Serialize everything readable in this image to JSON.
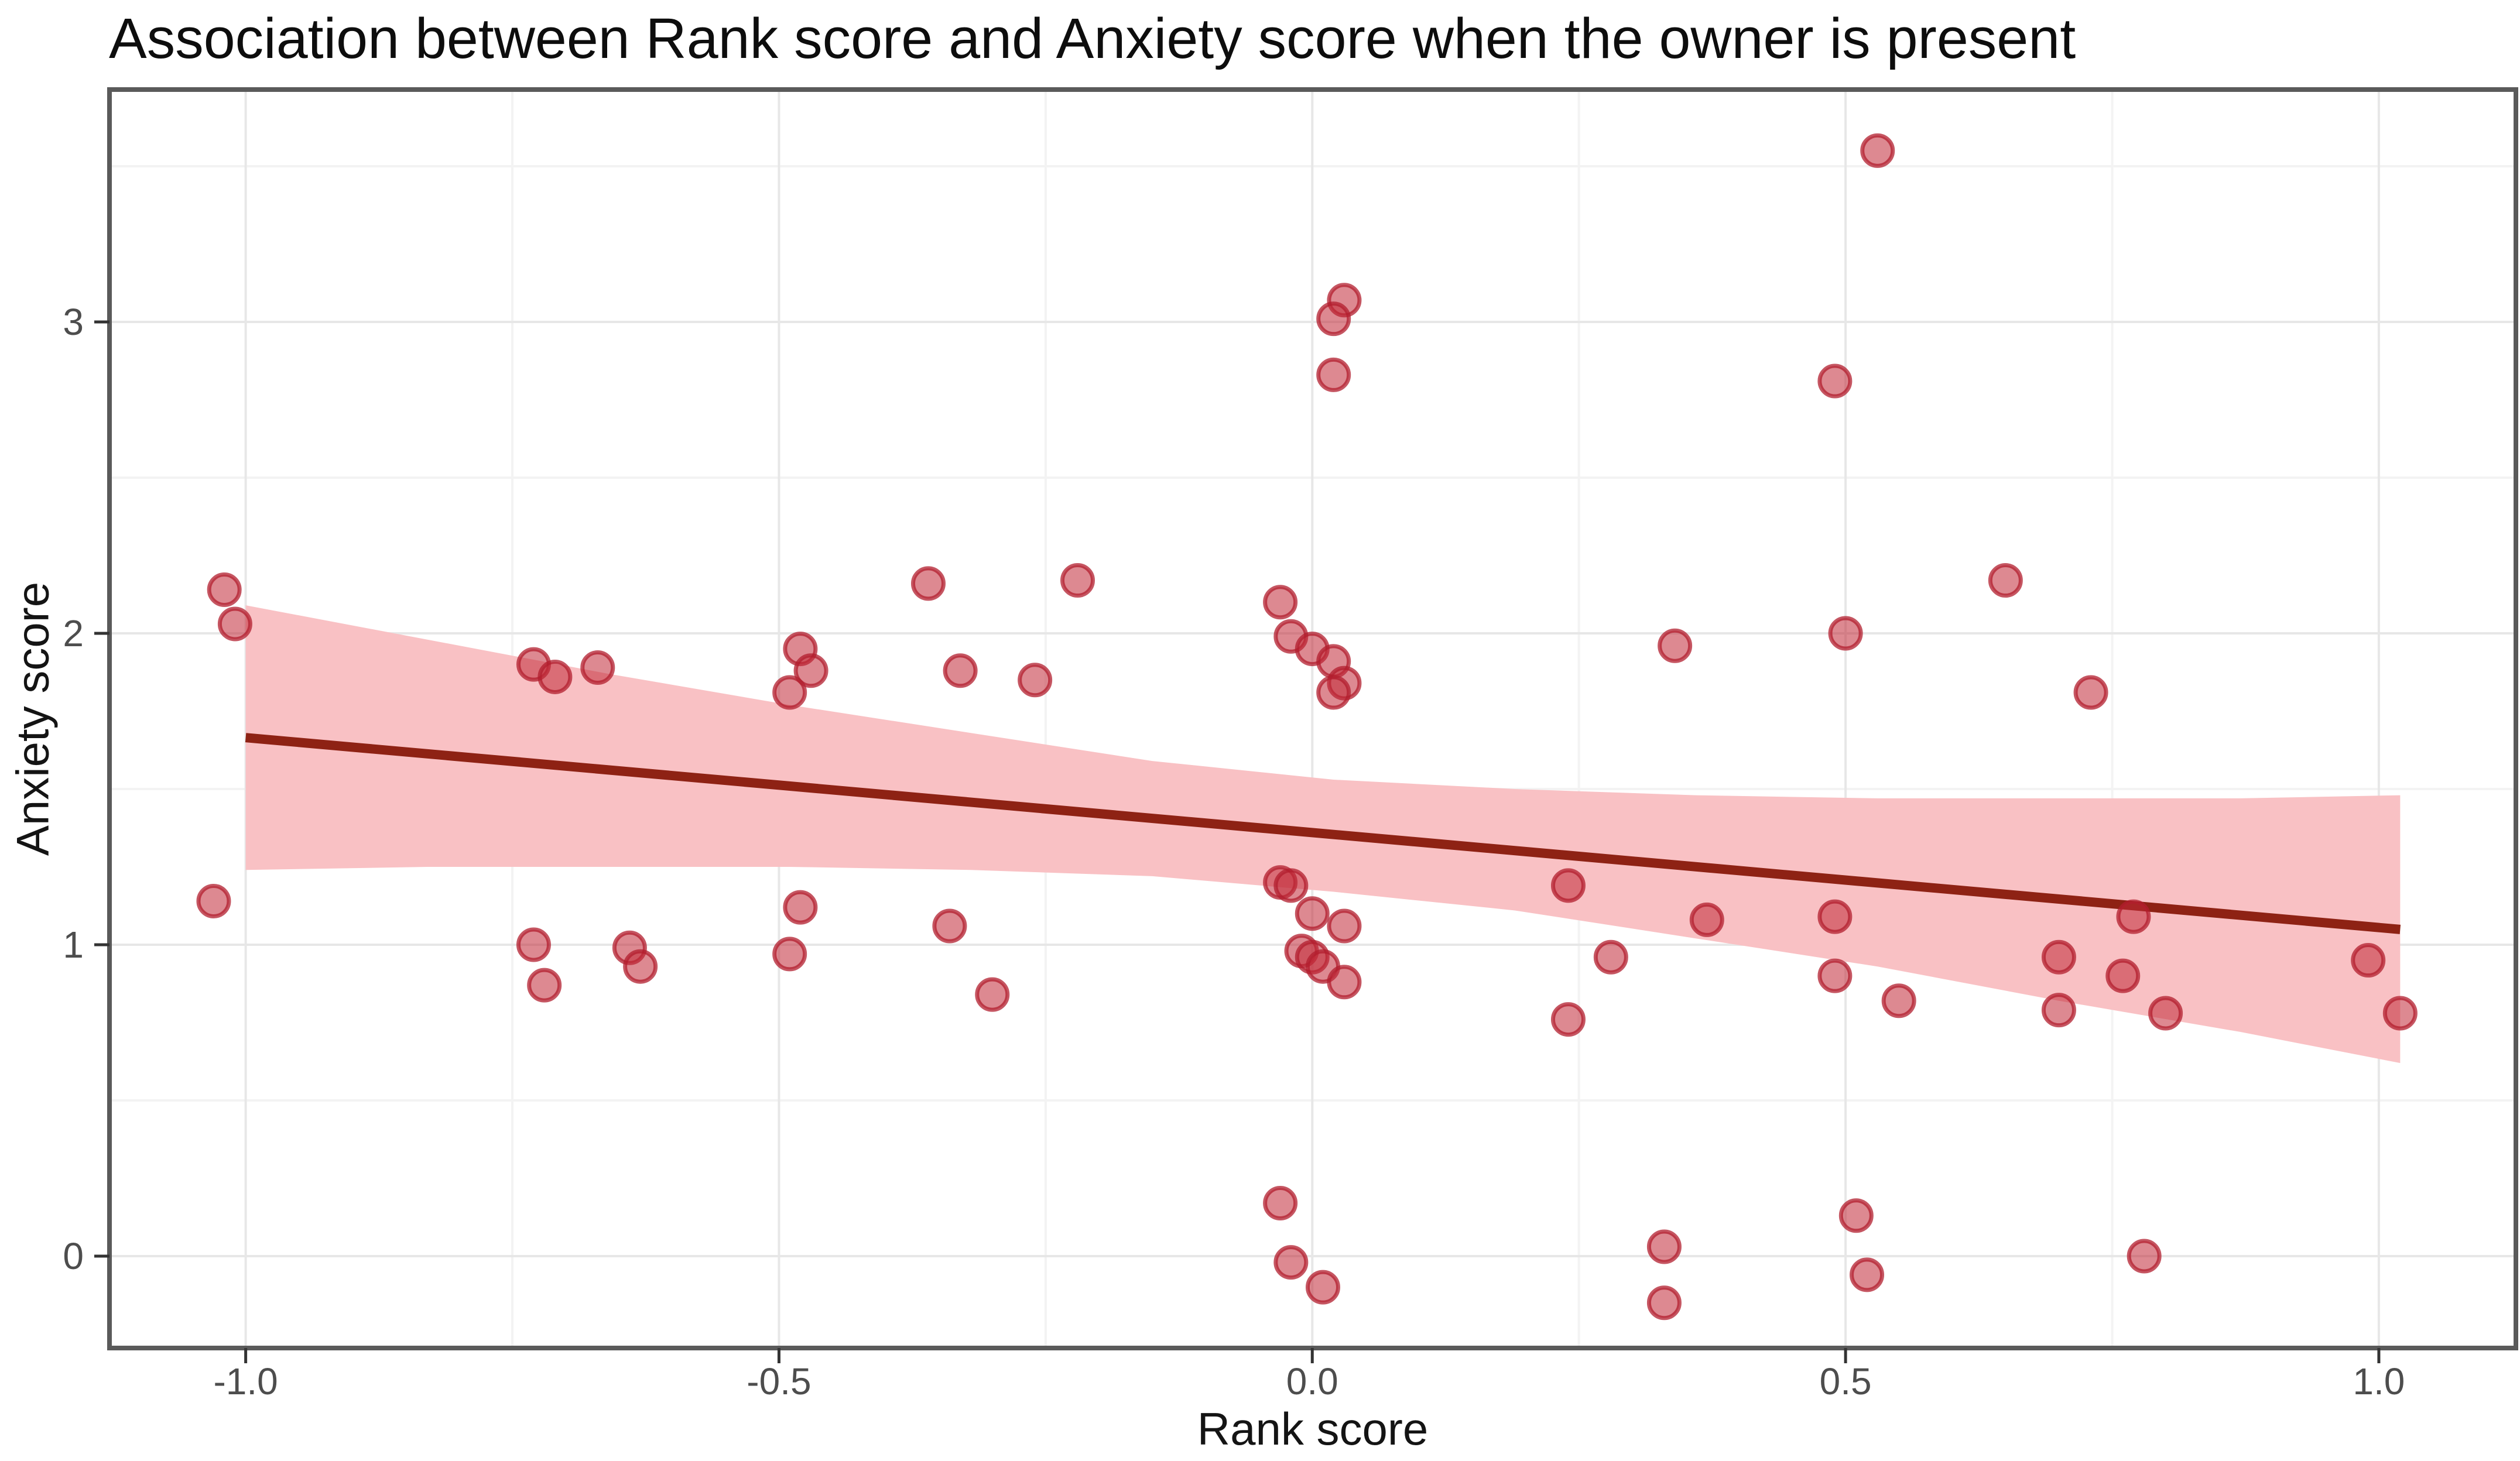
{
  "chart_data": {
    "type": "scatter",
    "title": "Association between Rank score and Anxiety score when the owner is present",
    "xlabel": "Rank score",
    "ylabel": "Anxiety score",
    "x_ticks": [
      -1.0,
      -0.5,
      0.0,
      0.5,
      1.0
    ],
    "x_tick_labels": [
      "-1.0",
      "-0.5",
      "0.0",
      "0.5",
      "1.0"
    ],
    "y_ticks": [
      0,
      1,
      2,
      3
    ],
    "y_tick_labels": [
      "0",
      "1",
      "2",
      "3"
    ],
    "x_minor_ticks": [
      -0.75,
      -0.25,
      0.25,
      0.75
    ],
    "y_minor_ticks": [
      0.5,
      1.5,
      2.5,
      3.5
    ],
    "xlim": [
      -1.1277,
      1.1285
    ],
    "ylim": [
      -0.2952,
      3.7462
    ],
    "grid": true,
    "legend": "none",
    "points": [
      [
        -1.02,
        2.14
      ],
      [
        -1.01,
        2.03
      ],
      [
        -1.03,
        1.14
      ],
      [
        -0.73,
        1.9
      ],
      [
        -0.71,
        1.86
      ],
      [
        -0.67,
        1.89
      ],
      [
        -0.73,
        1.0
      ],
      [
        -0.72,
        0.87
      ],
      [
        -0.64,
        0.99
      ],
      [
        -0.63,
        0.93
      ],
      [
        -0.48,
        1.95
      ],
      [
        -0.47,
        1.88
      ],
      [
        -0.49,
        1.81
      ],
      [
        -0.48,
        1.12
      ],
      [
        -0.49,
        0.97
      ],
      [
        -0.36,
        2.16
      ],
      [
        -0.33,
        1.88
      ],
      [
        -0.34,
        1.06
      ],
      [
        -0.3,
        0.84
      ],
      [
        -0.26,
        1.85
      ],
      [
        -0.22,
        2.17
      ],
      [
        0.03,
        3.07
      ],
      [
        0.02,
        3.01
      ],
      [
        0.02,
        2.83
      ],
      [
        -0.03,
        2.1
      ],
      [
        -0.02,
        1.99
      ],
      [
        0.0,
        1.95
      ],
      [
        0.02,
        1.91
      ],
      [
        0.03,
        1.84
      ],
      [
        0.02,
        1.81
      ],
      [
        -0.03,
        1.2
      ],
      [
        -0.02,
        1.19
      ],
      [
        0.0,
        1.1
      ],
      [
        0.03,
        1.06
      ],
      [
        -0.01,
        0.98
      ],
      [
        0.0,
        0.96
      ],
      [
        0.01,
        0.93
      ],
      [
        0.03,
        0.88
      ],
      [
        -0.03,
        0.17
      ],
      [
        -0.02,
        -0.02
      ],
      [
        0.01,
        -0.1
      ],
      [
        0.24,
        1.19
      ],
      [
        0.24,
        0.76
      ],
      [
        0.28,
        0.96
      ],
      [
        0.33,
        0.03
      ],
      [
        0.33,
        -0.15
      ],
      [
        0.34,
        1.96
      ],
      [
        0.37,
        1.08
      ],
      [
        0.49,
        2.81
      ],
      [
        0.5,
        2.0
      ],
      [
        0.49,
        1.09
      ],
      [
        0.49,
        0.9
      ],
      [
        0.51,
        0.13
      ],
      [
        0.52,
        -0.06
      ],
      [
        0.53,
        3.55
      ],
      [
        0.55,
        0.82
      ],
      [
        0.65,
        2.17
      ],
      [
        0.7,
        0.96
      ],
      [
        0.7,
        0.79
      ],
      [
        0.73,
        1.81
      ],
      [
        0.76,
        0.9
      ],
      [
        0.77,
        1.09
      ],
      [
        0.78,
        0.0
      ],
      [
        0.8,
        0.78
      ],
      [
        0.99,
        0.95
      ],
      [
        1.02,
        0.78
      ]
    ],
    "regression_line": {
      "x1": -1.0,
      "y1": 1.665,
      "x2": 1.02,
      "y2": 1.049
    },
    "confidence_band": [
      {
        "x": -1.0,
        "top": 2.09,
        "bottom": 1.24
      },
      {
        "x": -0.83,
        "top": 1.98,
        "bottom": 1.25
      },
      {
        "x": -0.66,
        "top": 1.87,
        "bottom": 1.25
      },
      {
        "x": -0.49,
        "top": 1.77,
        "bottom": 1.25
      },
      {
        "x": -0.32,
        "top": 1.68,
        "bottom": 1.24
      },
      {
        "x": -0.15,
        "top": 1.59,
        "bottom": 1.22
      },
      {
        "x": 0.02,
        "top": 1.53,
        "bottom": 1.17
      },
      {
        "x": 0.19,
        "top": 1.5,
        "bottom": 1.11
      },
      {
        "x": 0.36,
        "top": 1.48,
        "bottom": 1.02
      },
      {
        "x": 0.53,
        "top": 1.47,
        "bottom": 0.93
      },
      {
        "x": 0.7,
        "top": 1.47,
        "bottom": 0.82
      },
      {
        "x": 0.87,
        "top": 1.47,
        "bottom": 0.72
      },
      {
        "x": 1.02,
        "top": 1.48,
        "bottom": 0.62
      }
    ],
    "colors": {
      "point_fill": "rgba(193,40,55,0.55)",
      "point_stroke": "rgba(178,30,45,0.75)",
      "band": "#f9c1c4",
      "line": "#8e2214",
      "grid_major": "#e7e7e7",
      "grid_minor": "#f3f3f3",
      "panel_border": "#5a5a5a",
      "tick_mark": "#333333",
      "tick_label": "#4d4d4d",
      "text": "#141414",
      "background": "#ffffff"
    }
  }
}
